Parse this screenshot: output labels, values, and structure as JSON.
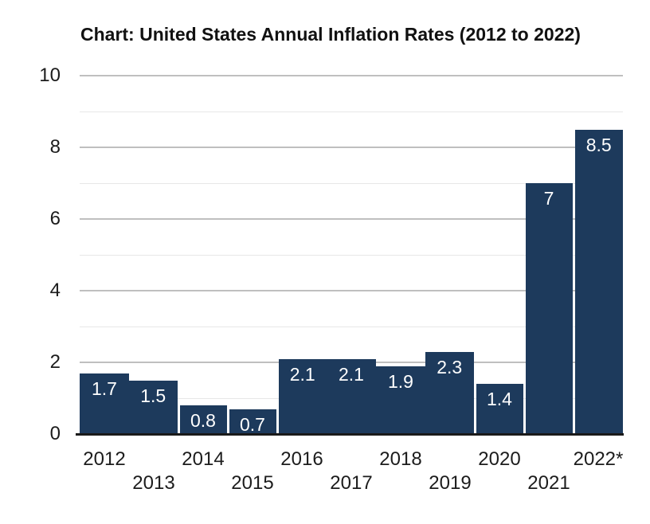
{
  "chart_data": {
    "type": "bar",
    "title": "Chart: United States Annual Inflation Rates (2012 to 2022)",
    "categories": [
      "2012",
      "2013",
      "2014",
      "2015",
      "2016",
      "2017",
      "2018",
      "2019",
      "2020",
      "2021",
      "2022*"
    ],
    "values": [
      1.7,
      1.5,
      0.8,
      0.7,
      2.1,
      2.1,
      1.9,
      2.3,
      1.4,
      7,
      8.5
    ],
    "bar_value_labels": [
      "1.7",
      "1.5",
      "0.8",
      "0.7",
      "2.1",
      "2.1",
      "1.9",
      "2.3",
      "1.4",
      "7",
      "8.5"
    ],
    "xlabel": "",
    "ylabel": "",
    "ylim": [
      0,
      10
    ],
    "y_major_ticks": [
      0,
      2,
      4,
      6,
      8,
      10
    ],
    "y_minor_ticks": [
      1,
      3,
      5,
      7,
      9
    ],
    "grid": "horizontal",
    "legend": "none",
    "staggered_x_labels": true,
    "separators_after_indices": [
      1,
      2,
      3,
      7,
      8,
      9
    ],
    "colors": {
      "bar_fill": "#1d3a5c",
      "bar_value_label": "#ffffff",
      "major_gridline": "#bfbfbf",
      "minor_gridline": "#e7e7e7",
      "baseline": "#1a1a1a",
      "axis_text": "#1c1c1c",
      "title_text": "#111111",
      "background": "#ffffff"
    }
  }
}
